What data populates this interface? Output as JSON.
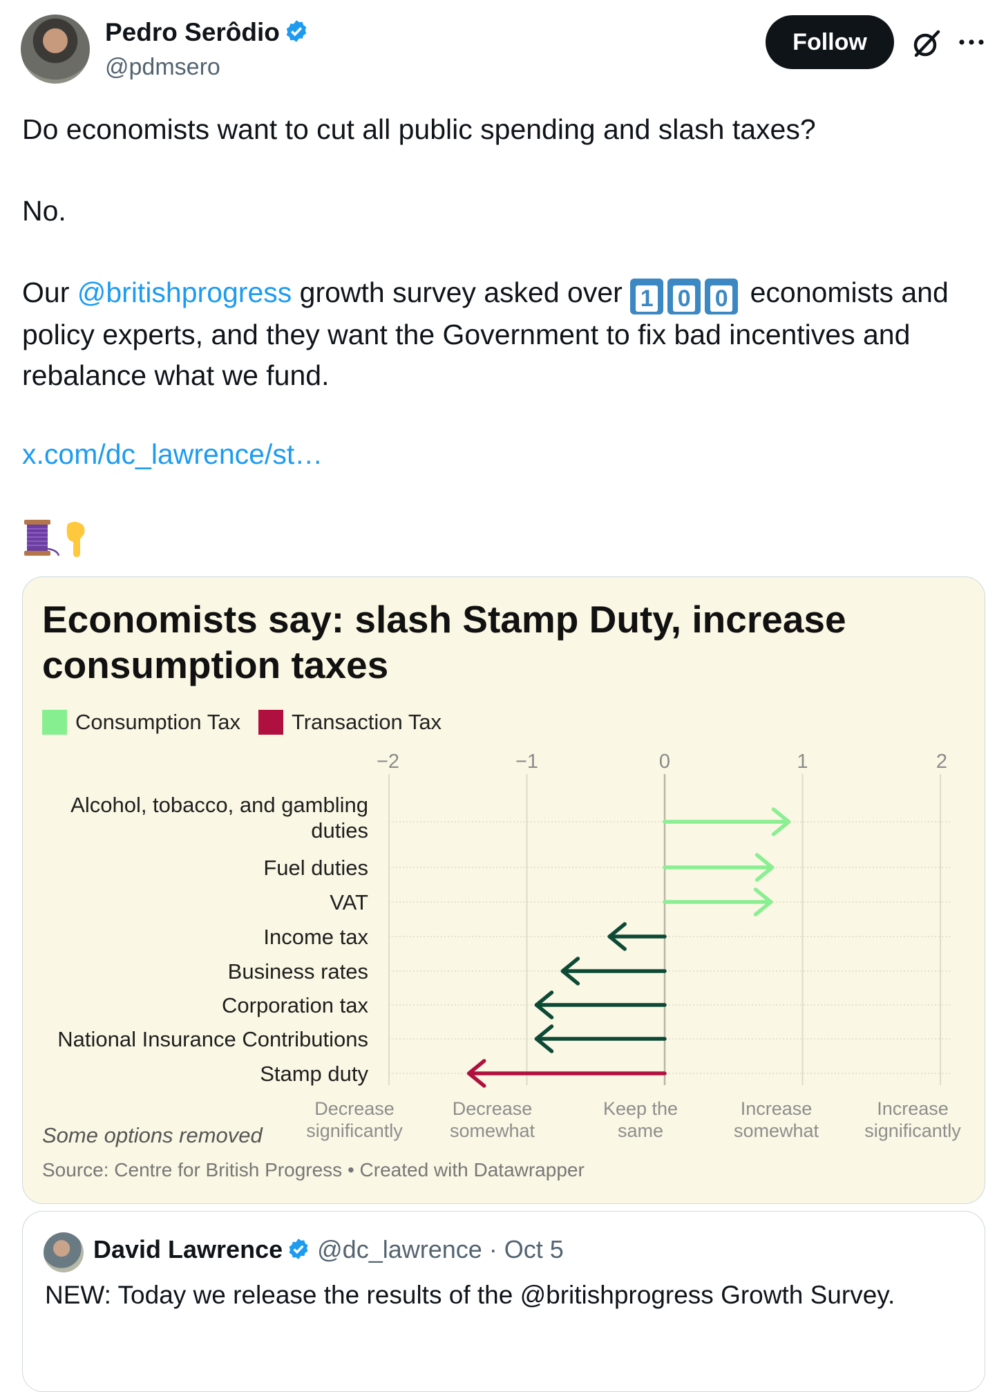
{
  "author": {
    "name": "Pedro Serôdio",
    "handle": "@pdmsero",
    "verified": true
  },
  "header": {
    "follow_label": "Follow",
    "grok_icon": "grok-icon",
    "more_icon": "more-icon"
  },
  "tweet": {
    "line1": "Do economists want to cut all public spending and slash taxes?",
    "line2": "No.",
    "line3_prefix": "Our ",
    "line3_mention": "@britishprogress",
    "line3_mid": " growth survey asked over ",
    "keycaps": [
      "1",
      "0",
      "0"
    ],
    "line3_suffix": " economists and",
    "line4": "policy experts, and they want the Government to fix bad incentives and",
    "line5": "rebalance what we fund.",
    "link": "x.com/dc_lawrence/st…",
    "emojis": [
      "thread-spool-emoji",
      "pointing-down-emoji"
    ]
  },
  "colors": {
    "consumption": "#86ef8f",
    "consumption_arrow": "#8aef92",
    "other_arrow": "#0d4a36",
    "transaction": "#b0103f",
    "card_bg": "#faf7e4",
    "link": "#1d9bf0"
  },
  "chart_data": {
    "type": "arrow",
    "title": "Economists say: slash Stamp Duty, increase consumption taxes",
    "legend": [
      {
        "name": "Consumption Tax",
        "color": "#86ef8f"
      },
      {
        "name": "Transaction Tax",
        "color": "#b0103f"
      }
    ],
    "legend_position": "top-left",
    "x_ticks": [
      -2,
      -1,
      0,
      1,
      2
    ],
    "x_tick_labels": [
      "−2",
      "−1",
      "0",
      "1",
      "2"
    ],
    "xlim": [
      -2,
      2
    ],
    "x_category_labels": [
      [
        "Decrease",
        "significantly"
      ],
      [
        "Decrease",
        "somewhat"
      ],
      [
        "Keep the",
        "same"
      ],
      [
        "Increase",
        "somewhat"
      ],
      [
        "Increase",
        "significantly"
      ]
    ],
    "grid": true,
    "rows": [
      {
        "label": [
          "Alcohol, tobacco, and gambling",
          "duties"
        ],
        "value": 0.9,
        "group": "consumption"
      },
      {
        "label": [
          "Fuel duties"
        ],
        "value": 0.78,
        "group": "consumption"
      },
      {
        "label": [
          "VAT"
        ],
        "value": 0.77,
        "group": "consumption"
      },
      {
        "label": [
          "Income tax"
        ],
        "value": -0.4,
        "group": "other"
      },
      {
        "label": [
          "Business rates"
        ],
        "value": -0.74,
        "group": "other"
      },
      {
        "label": [
          "Corporation tax"
        ],
        "value": -0.93,
        "group": "other"
      },
      {
        "label": [
          "National Insurance Contributions"
        ],
        "value": -0.93,
        "group": "other"
      },
      {
        "label": [
          "Stamp duty"
        ],
        "value": -1.42,
        "group": "transaction"
      }
    ],
    "note": "Some options removed",
    "source": "Source: Centre for British Progress • Created with Datawrapper"
  },
  "quote": {
    "name": "David Lawrence",
    "handle_date": "@dc_lawrence · Oct 5",
    "text": "NEW: Today we release the results of the @britishprogress Growth Survey."
  }
}
